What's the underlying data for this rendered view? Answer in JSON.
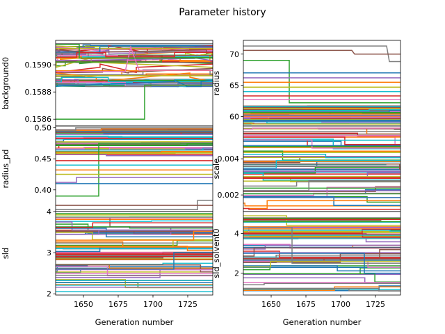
{
  "chart_data": {
    "type": "line",
    "title": "Parameter history",
    "x_label": "Generation number",
    "x_range": [
      1630,
      1743
    ],
    "x_ticks": [
      "1650",
      "1675",
      "1700",
      "1725"
    ],
    "palette": [
      "#1f77b4",
      "#ff7f0e",
      "#2ca02c",
      "#d62728",
      "#9467bd",
      "#8c564b",
      "#e377c2",
      "#7f7f7f",
      "#bcbd22",
      "#17becf"
    ],
    "panels": [
      {
        "name": "background0",
        "ylabel": "background0",
        "ylim": [
          0.15855,
          0.15918
        ],
        "yticks": [
          "0.1586",
          "0.1588",
          "0.1590"
        ],
        "ytick_values": [
          0.1586,
          0.1588,
          0.159
        ],
        "base_lines": 55,
        "band": [
          0.15884,
          0.15916
        ],
        "special": [
          {
            "color": "#2ca02c",
            "points": [
              [
                1630,
                0.1586
              ],
              [
                1694,
                0.1586
              ],
              [
                1694,
                0.15885
              ],
              [
                1743,
                0.15885
              ]
            ]
          },
          {
            "color": "#e377c2",
            "points": [
              [
                1630,
                0.15895
              ],
              [
                1680,
                0.15895
              ],
              [
                1684,
                0.15913
              ],
              [
                1690,
                0.15896
              ],
              [
                1743,
                0.15896
              ]
            ]
          },
          {
            "color": "#2ca02c",
            "points": [
              [
                1630,
                0.15915
              ],
              [
                1647,
                0.15915
              ],
              [
                1647,
                0.15905
              ],
              [
                1743,
                0.15905
              ]
            ]
          }
        ]
      },
      {
        "name": "radius",
        "ylabel": "radius",
        "ylim": [
          58.5,
          72.2
        ],
        "yticks": [
          "60",
          "65",
          "70"
        ],
        "ytick_values": [
          60,
          65,
          70
        ],
        "base_lines": 60,
        "band": [
          58.8,
          61.7
        ],
        "special": [
          {
            "color": "#7f7f7f",
            "points": [
              [
                1630,
                71.3
              ],
              [
                1733,
                71.3
              ],
              [
                1735,
                68.8
              ],
              [
                1743,
                68.8
              ]
            ]
          },
          {
            "color": "#8c564b",
            "points": [
              [
                1630,
                70.6
              ],
              [
                1708,
                70.6
              ],
              [
                1710,
                70.0
              ],
              [
                1743,
                70.0
              ]
            ]
          },
          {
            "color": "#2ca02c",
            "points": [
              [
                1630,
                69.0
              ],
              [
                1663,
                69.0
              ],
              [
                1663,
                62.2
              ],
              [
                1743,
                62.2
              ]
            ]
          },
          {
            "color": "#1f77b4",
            "points": [
              [
                1630,
                67.0
              ],
              [
                1743,
                67.0
              ]
            ]
          },
          {
            "color": "#9467bd",
            "points": [
              [
                1630,
                66.2
              ],
              [
                1743,
                66.2
              ]
            ]
          },
          {
            "color": "#ff7f0e",
            "points": [
              [
                1630,
                65.5
              ],
              [
                1743,
                65.5
              ]
            ]
          },
          {
            "color": "#bcbd22",
            "points": [
              [
                1630,
                64.7
              ],
              [
                1743,
                64.7
              ]
            ]
          },
          {
            "color": "#17becf",
            "points": [
              [
                1630,
                64.0
              ],
              [
                1743,
                64.0
              ]
            ]
          },
          {
            "color": "#d62728",
            "points": [
              [
                1630,
                63.3
              ],
              [
                1743,
                63.3
              ]
            ]
          },
          {
            "color": "#e377c2",
            "points": [
              [
                1630,
                62.7
              ],
              [
                1743,
                62.7
              ]
            ]
          }
        ]
      },
      {
        "name": "radius_pd",
        "ylabel": "radius_pd",
        "ylim": [
          0.365,
          0.503
        ],
        "yticks": [
          "0.40",
          "0.45",
          "0.50"
        ],
        "ytick_values": [
          0.4,
          0.45,
          0.5
        ],
        "base_lines": 50,
        "band": [
          0.455,
          0.5
        ],
        "special": [
          {
            "color": "#7f7f7f",
            "points": [
              [
                1630,
                0.368
              ],
              [
                1732,
                0.368
              ],
              [
                1732,
                0.383
              ],
              [
                1743,
                0.383
              ]
            ]
          },
          {
            "color": "#8c564b",
            "points": [
              [
                1630,
                0.375
              ],
              [
                1743,
                0.375
              ]
            ]
          },
          {
            "color": "#2ca02c",
            "points": [
              [
                1630,
                0.39
              ],
              [
                1661,
                0.39
              ],
              [
                1661,
                0.475
              ],
              [
                1743,
                0.475
              ]
            ]
          },
          {
            "color": "#1f77b4",
            "points": [
              [
                1630,
                0.41
              ],
              [
                1743,
                0.41
              ]
            ]
          },
          {
            "color": "#9467bd",
            "points": [
              [
                1630,
                0.412
              ],
              [
                1645,
                0.412
              ],
              [
                1645,
                0.42
              ],
              [
                1743,
                0.42
              ]
            ]
          },
          {
            "color": "#bcbd22",
            "points": [
              [
                1630,
                0.425
              ],
              [
                1743,
                0.425
              ]
            ]
          },
          {
            "color": "#ff7f0e",
            "points": [
              [
                1630,
                0.432
              ],
              [
                1743,
                0.432
              ]
            ]
          },
          {
            "color": "#17becf",
            "points": [
              [
                1630,
                0.44
              ],
              [
                1743,
                0.44
              ]
            ]
          },
          {
            "color": "#d62728",
            "points": [
              [
                1630,
                0.447
              ],
              [
                1743,
                0.447
              ]
            ]
          }
        ]
      },
      {
        "name": "scale",
        "ylabel": "scale",
        "ylim": [
          0.00108,
          0.00582
        ],
        "yticks": [
          "0.002",
          "0.004"
        ],
        "ytick_values": [
          0.002,
          0.004
        ],
        "base_lines": 70,
        "band": [
          0.0012,
          0.0057
        ],
        "special": []
      },
      {
        "name": "sld",
        "ylabel": "sld",
        "ylim": [
          1.97,
          4.0
        ],
        "yticks": [
          "2",
          "3",
          "4"
        ],
        "ytick_values": [
          2,
          3,
          4
        ],
        "base_lines": 65,
        "band": [
          2.15,
          3.95
        ],
        "special": [
          {
            "color": "#1f77b4",
            "points": [
              [
                1630,
                2.6
              ],
              [
                1715,
                2.6
              ],
              [
                1715,
                3.0
              ],
              [
                1743,
                3.0
              ]
            ]
          },
          {
            "color": "#17becf",
            "points": [
              [
                1630,
                2.05
              ],
              [
                1743,
                2.05
              ]
            ]
          }
        ]
      },
      {
        "name": "sld_solvent0",
        "ylabel": "sld_solvent0",
        "ylim": [
          0.9,
          5.1
        ],
        "yticks": [
          "2",
          "4"
        ],
        "ytick_values": [
          2,
          4
        ],
        "base_lines": 60,
        "band": [
          1.1,
          4.9
        ],
        "special": [
          {
            "color": "#7f7f7f",
            "points": [
              [
                1630,
                4.3
              ],
              [
                1665,
                4.3
              ],
              [
                1665,
                2.5
              ],
              [
                1743,
                2.5
              ]
            ]
          },
          {
            "color": "#1f77b4",
            "points": [
              [
                1630,
                3.0
              ],
              [
                1717,
                3.0
              ],
              [
                1717,
                2.0
              ],
              [
                1743,
                2.0
              ]
            ]
          }
        ]
      }
    ]
  }
}
